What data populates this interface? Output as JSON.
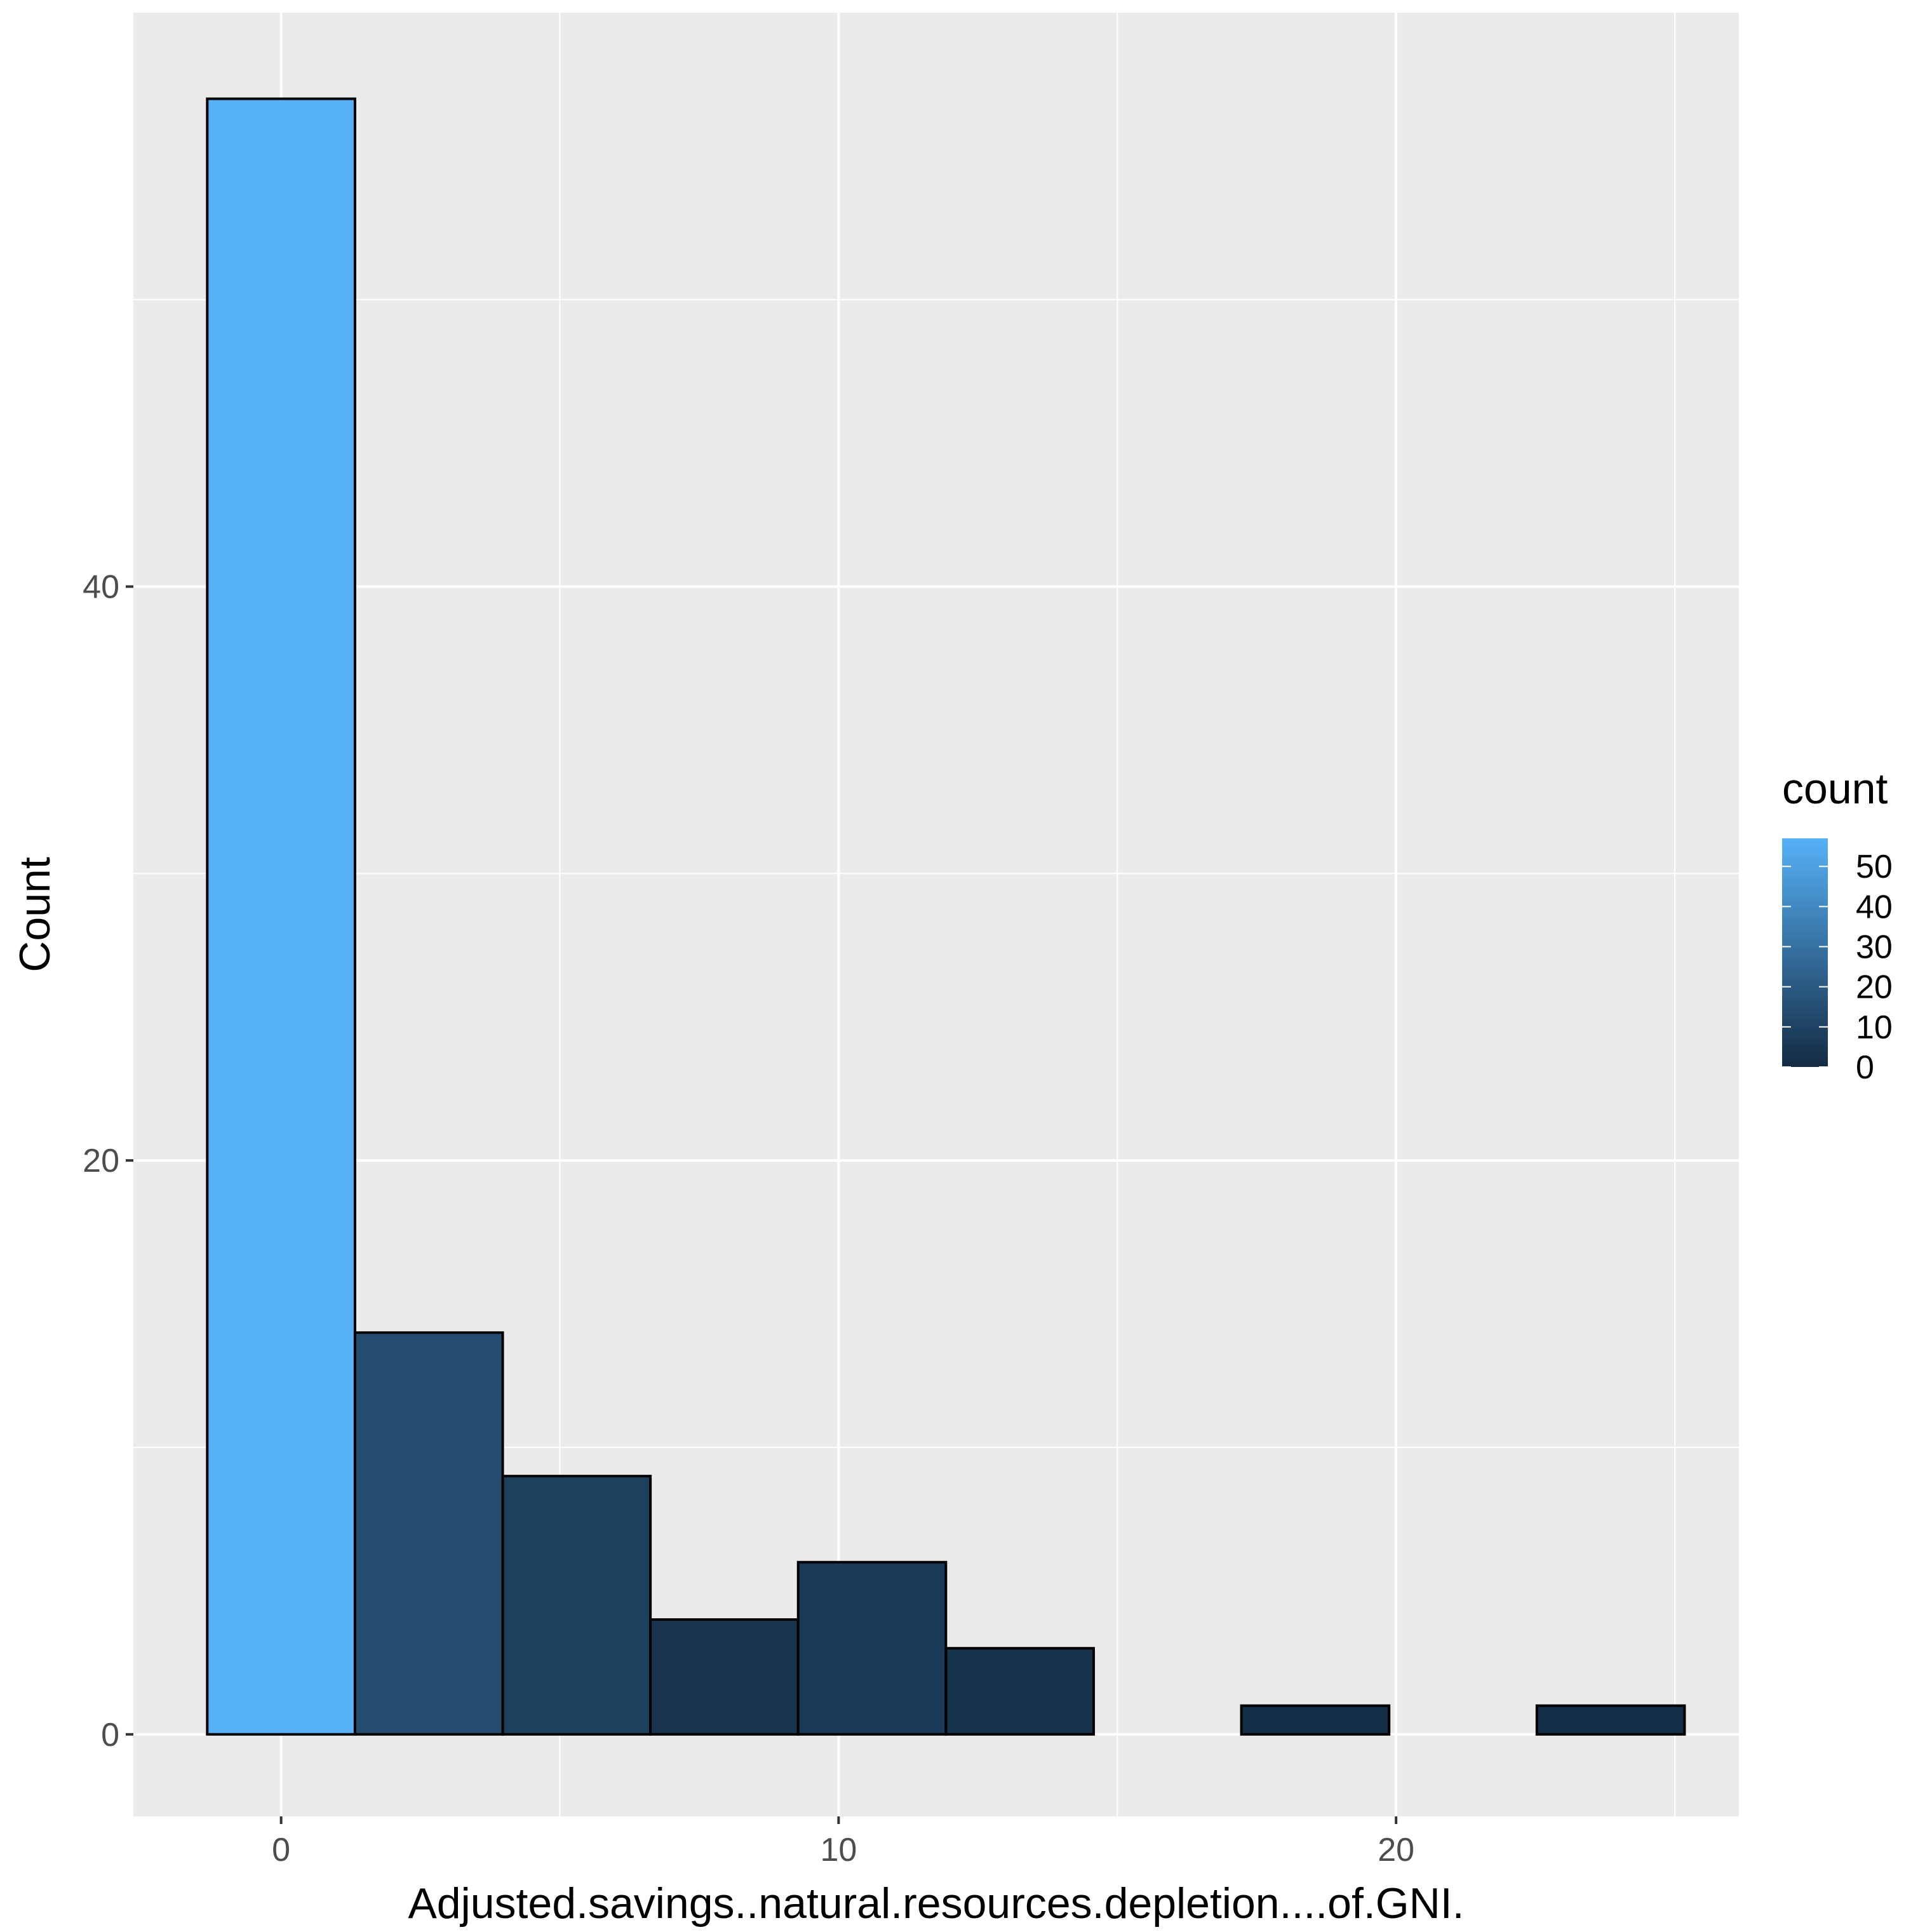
{
  "chart_data": {
    "type": "bar",
    "subtype": "histogram",
    "xlabel": "Adjusted.savings..natural.resources.depletion....of.GNI.",
    "ylabel": "Count",
    "x_ticks": [
      0,
      10,
      20
    ],
    "y_ticks": [
      0,
      20,
      40
    ],
    "xlim": [
      -2.65,
      26.15
    ],
    "ylim": [
      -2.86,
      60.0
    ],
    "bin_width": 2.65,
    "bins": [
      {
        "x_start": -1.325,
        "x_end": 1.325,
        "count": 57
      },
      {
        "x_start": 1.325,
        "x_end": 3.975,
        "count": 14
      },
      {
        "x_start": 3.975,
        "x_end": 6.625,
        "count": 9
      },
      {
        "x_start": 6.625,
        "x_end": 9.275,
        "count": 4
      },
      {
        "x_start": 9.275,
        "x_end": 11.925,
        "count": 6
      },
      {
        "x_start": 11.925,
        "x_end": 14.575,
        "count": 3
      },
      {
        "x_start": 14.575,
        "x_end": 17.225,
        "count": 0
      },
      {
        "x_start": 17.225,
        "x_end": 19.875,
        "count": 1
      },
      {
        "x_start": 19.875,
        "x_end": 22.525,
        "count": 0
      },
      {
        "x_start": 22.525,
        "x_end": 25.175,
        "count": 1
      }
    ],
    "grid": true,
    "legend": {
      "title": "count",
      "placement": "right",
      "type": "colorbar",
      "ticks": [
        0,
        10,
        20,
        30,
        40,
        50
      ],
      "range": [
        0,
        57
      ],
      "color_low": "#132B43",
      "color_high": "#56B1F7"
    },
    "colors": {
      "panel_background": "#EBEBEB",
      "grid": "#FFFFFF",
      "bar_outline": "#000000"
    }
  }
}
